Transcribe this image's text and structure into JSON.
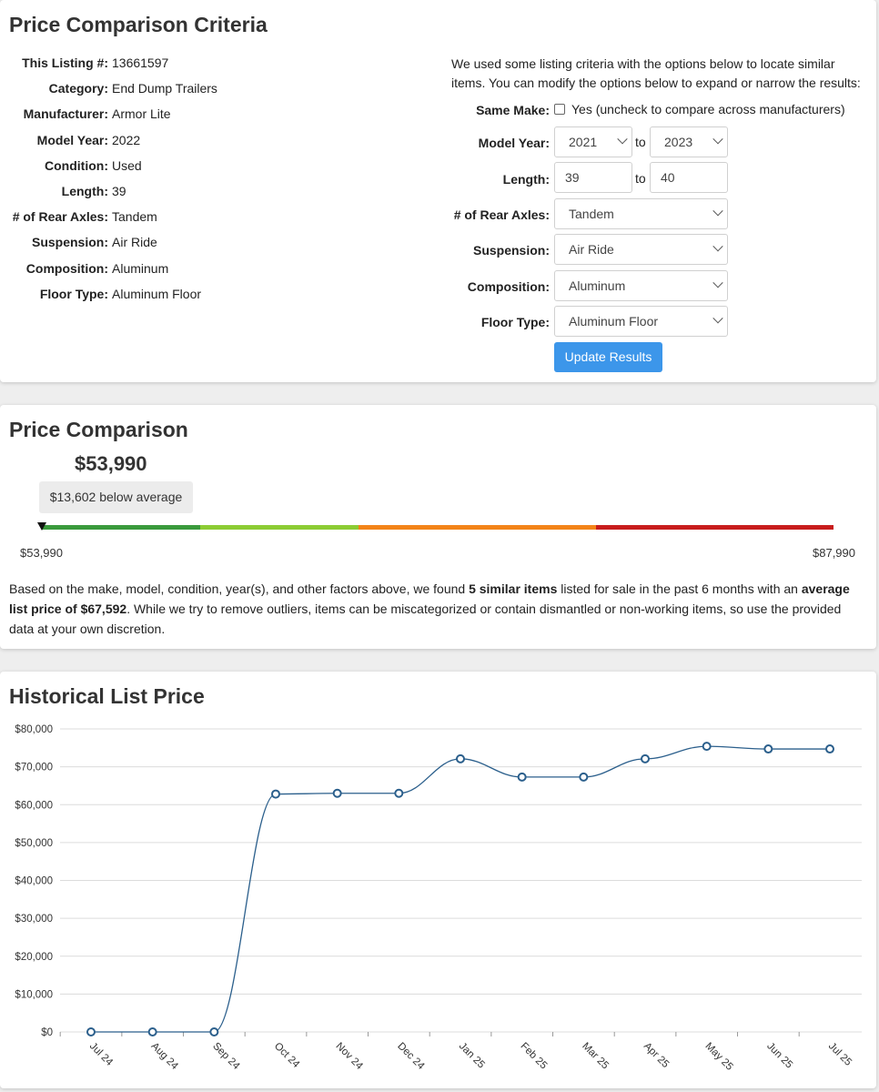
{
  "criteria": {
    "title": "Price Comparison Criteria",
    "specs": [
      {
        "label": "This Listing #:",
        "value": "13661597"
      },
      {
        "label": "Category:",
        "value": "End Dump Trailers"
      },
      {
        "label": "Manufacturer:",
        "value": "Armor Lite"
      },
      {
        "label": "Model Year:",
        "value": "2022"
      },
      {
        "label": "Condition:",
        "value": "Used"
      },
      {
        "label": "Length:",
        "value": "39"
      },
      {
        "label": "# of Rear Axles:",
        "value": "Tandem"
      },
      {
        "label": "Suspension:",
        "value": "Air Ride"
      },
      {
        "label": "Composition:",
        "value": "Aluminum"
      },
      {
        "label": "Floor Type:",
        "value": "Aluminum Floor"
      }
    ],
    "intro": "We used some listing criteria with the options below to locate similar items. You can modify the options below to expand or narrow the results:",
    "form": {
      "same_make_label": "Same Make:",
      "same_make_checked": false,
      "same_make_text": "Yes (uncheck to compare across manufacturers)",
      "model_year_label": "Model Year:",
      "model_year_from": "2021",
      "model_year_to": "2023",
      "to_text": "to",
      "length_label": "Length:",
      "length_from": "39",
      "length_to": "40",
      "axles_label": "# of Rear Axles:",
      "axles_value": "Tandem",
      "suspension_label": "Suspension:",
      "suspension_value": "Air Ride",
      "composition_label": "Composition:",
      "composition_value": "Aluminum",
      "floor_label": "Floor Type:",
      "floor_value": "Aluminum Floor",
      "update_button": "Update Results"
    }
  },
  "comparison": {
    "title": "Price Comparison",
    "price": "$53,990",
    "diff_text": "$13,602 below average",
    "range_min": "$53,990",
    "range_max": "$87,990",
    "marker_position_fraction": 0.0,
    "bar_colors": [
      "#3a9a3c",
      "#8ccc34",
      "#f38419",
      "#c81d1d"
    ],
    "summary_parts": [
      "Based on the make, model, condition, year(s), and other factors above, we found ",
      "5 similar items",
      " listed for sale in the past 6 months with an ",
      "average list price of $67,592",
      ". While we try to remove outliers, items can be miscategorized or contain dismantled or non-working items, so use the provided data at your own discretion."
    ]
  },
  "history": {
    "title": "Historical List Price",
    "chart_data": {
      "type": "line",
      "categories": [
        "Jul 24",
        "Aug 24",
        "Sep 24",
        "Oct 24",
        "Nov 24",
        "Dec 24",
        "Jan 25",
        "Feb 25",
        "Mar 25",
        "Apr 25",
        "May 25",
        "Jun 25",
        "Jul 25"
      ],
      "values": [
        0,
        0,
        0,
        62800,
        63000,
        63000,
        72100,
        67300,
        67300,
        72100,
        75400,
        74700,
        74700
      ],
      "yticks": [
        "$0",
        "$10,000",
        "$20,000",
        "$30,000",
        "$40,000",
        "$50,000",
        "$60,000",
        "$70,000",
        "$80,000"
      ],
      "ylim": [
        0,
        80000
      ],
      "grid": true,
      "line_color": "#2b5f8c",
      "title": "Historical List Price",
      "xlabel": "",
      "ylabel": ""
    }
  }
}
